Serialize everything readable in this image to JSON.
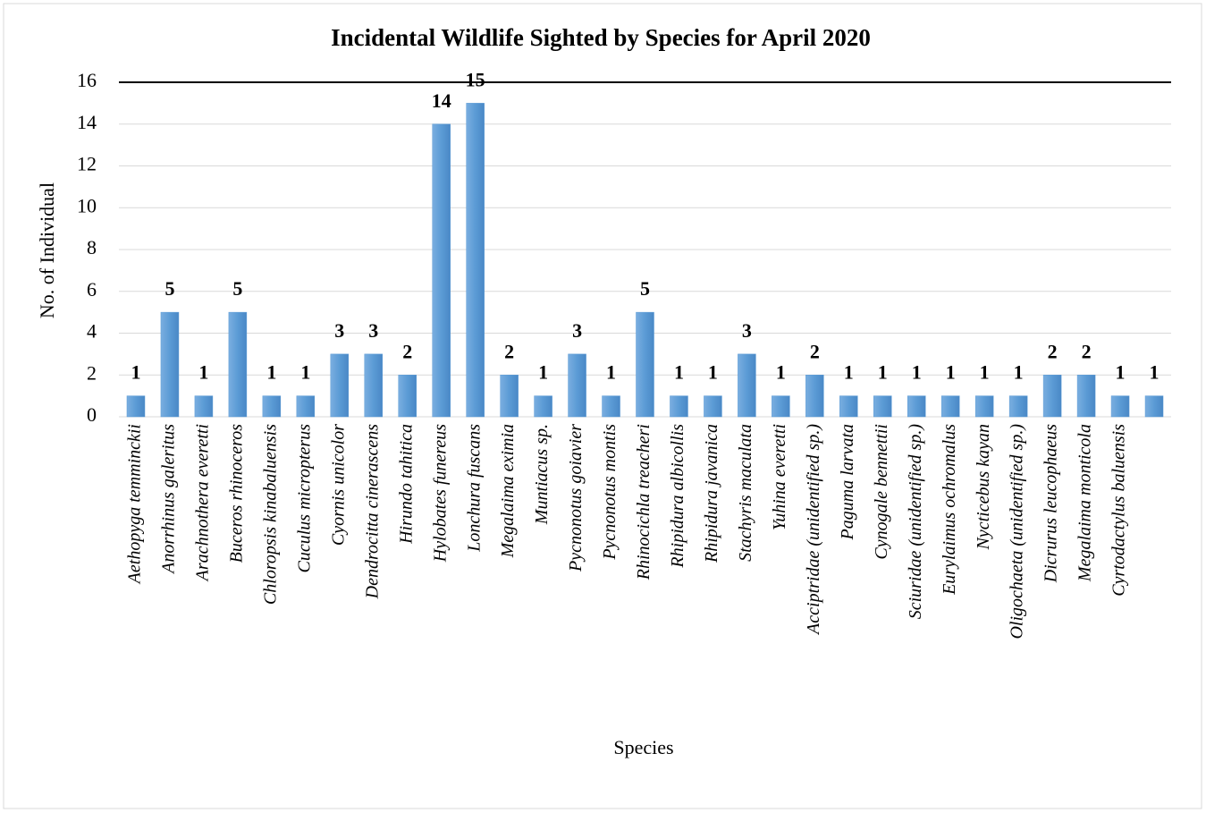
{
  "chart_data": {
    "type": "bar",
    "title": "Incidental Wildlife Sighted by Species for April 2020",
    "x_label": "Species",
    "y_label": "No. of Individual",
    "categories": [
      "Aethopyga temminckii",
      "Anorrhinus galeritus",
      "Arachnothera everetti",
      "Buceros rhinoceros",
      "Chloropsis kinabaluensis",
      "Cuculus micropterus",
      "Cyornis unicolor",
      "Dendrocitta cinerascens",
      "Hirundo tahitica",
      "Hylobates funereus",
      "Lonchura fuscans",
      "Megalaima eximia",
      "Muntiacus sp.",
      "Pycnonotus goiavier",
      "Pycnonotus montis",
      "Rhinocichla treacheri",
      "Rhipidura albicollis",
      "Rhipidura javanica",
      "Stachyris maculata",
      "Yuhina everetti",
      "Acciptridae (unidentified sp.)",
      "Paguma larvata",
      "Cynogale bennettii",
      "Sciuridae (unidentified sp.)",
      "Eurylaimus ochromalus",
      "Nycticebus kayan",
      "Oligochaeta (unidentified sp.)",
      "Dicrurus leucophaeus",
      "Megalaima monticola",
      "Cyrtodactylus baluensis",
      null
    ],
    "values": [
      1,
      5,
      1,
      5,
      1,
      1,
      3,
      3,
      2,
      14,
      15,
      2,
      1,
      3,
      1,
      5,
      1,
      1,
      3,
      1,
      2,
      1,
      1,
      1,
      1,
      1,
      1,
      2,
      2,
      1,
      1
    ],
    "color": "#5b9bd5",
    "ylim": [
      0,
      16
    ],
    "yticks": [
      0,
      2,
      4,
      6,
      8,
      10,
      12,
      14,
      16
    ],
    "grid": true
  }
}
